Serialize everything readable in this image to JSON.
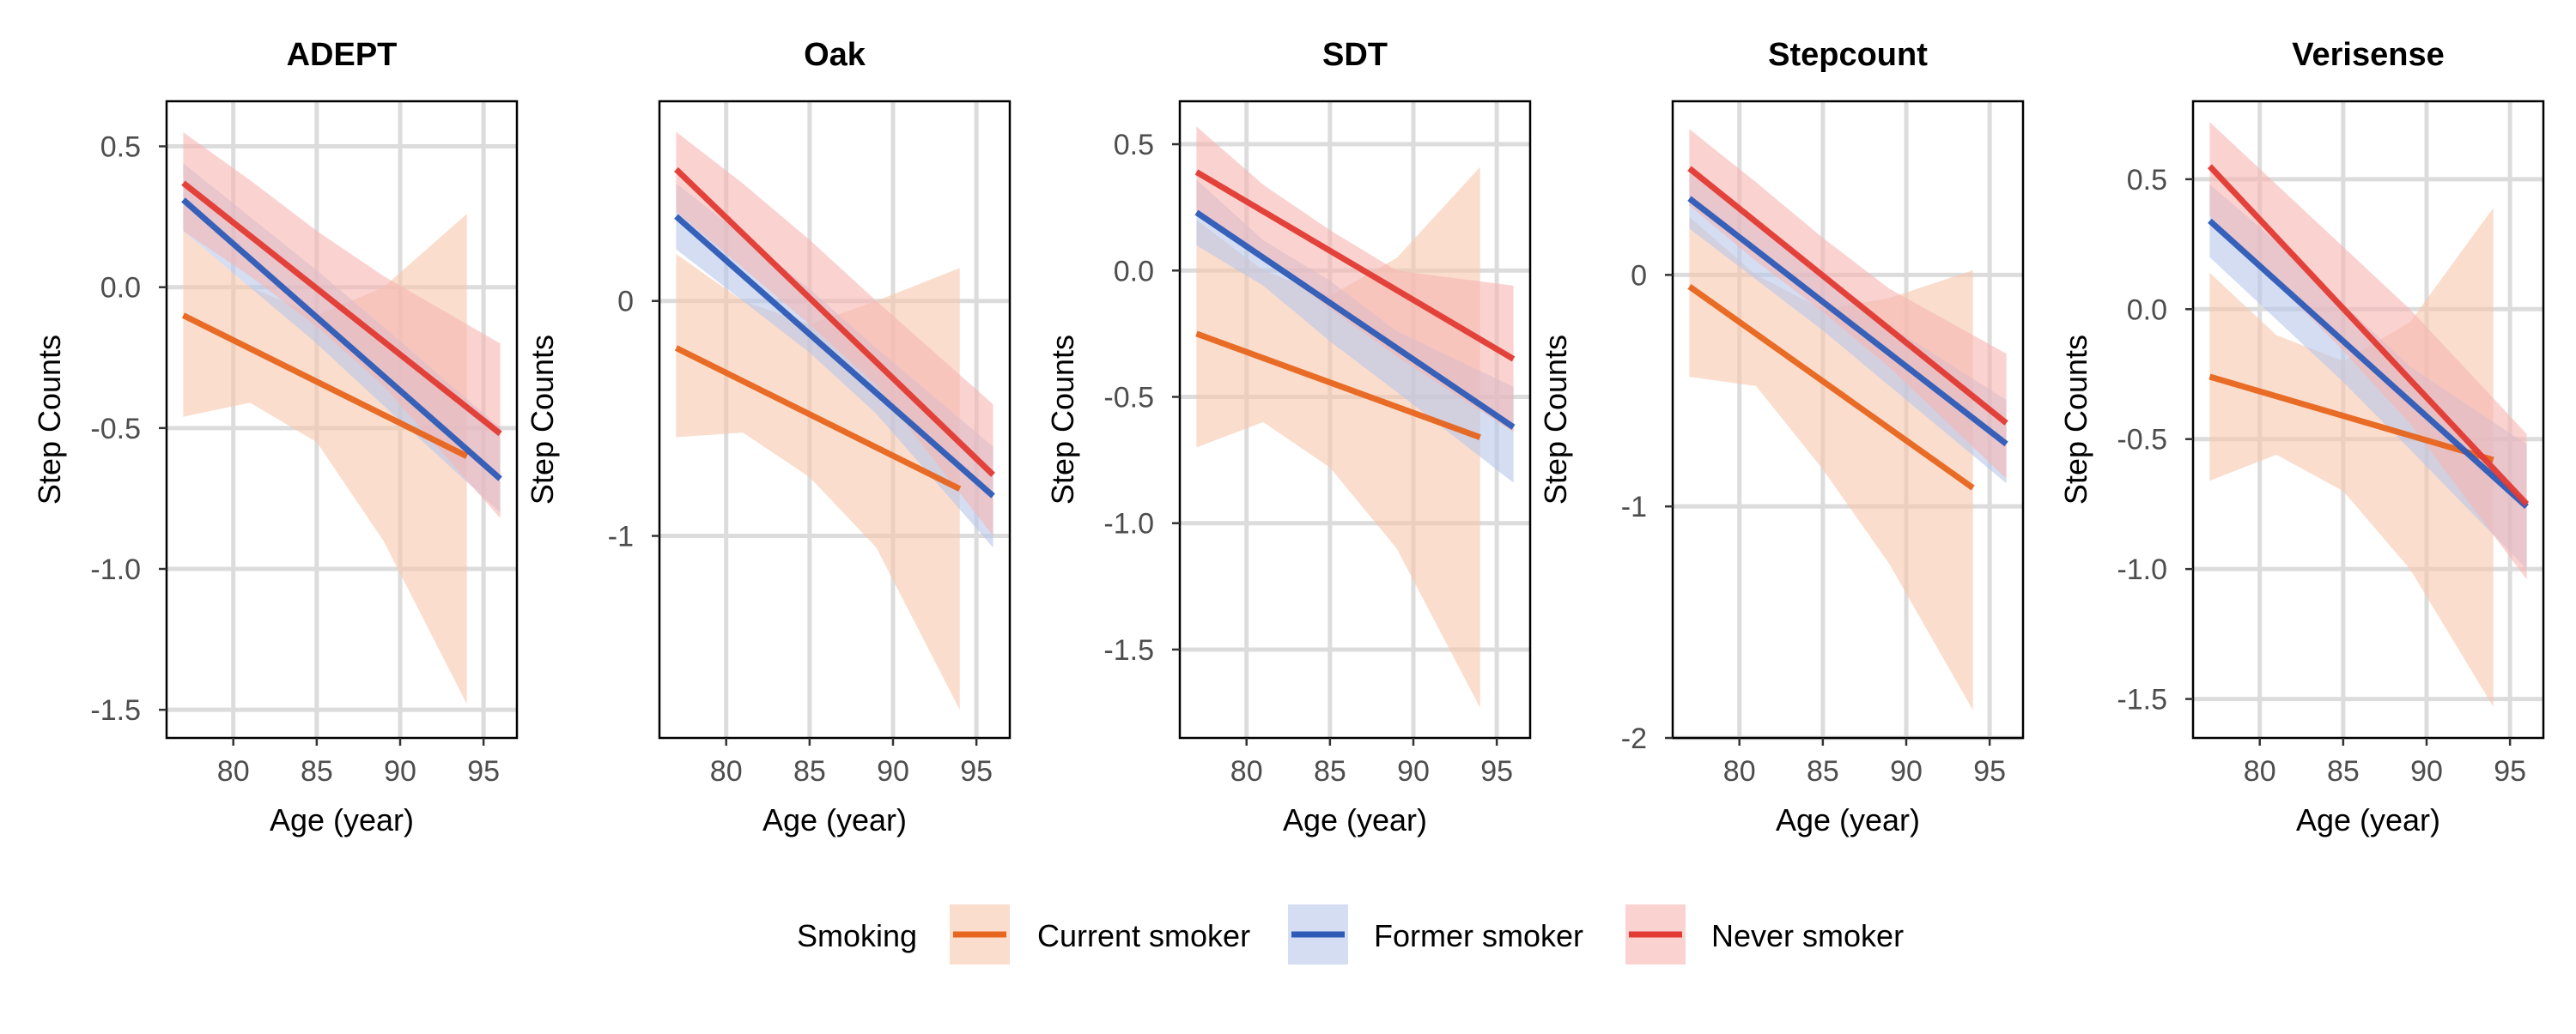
{
  "chart_data": {
    "type": "line",
    "xlabel": "Age (year)",
    "ylabel": "Step Counts",
    "grid": true,
    "legend": {
      "title": "Smoking",
      "placement": "bottom",
      "entries": [
        {
          "name": "Current smoker",
          "color": "#E8651E",
          "band_color": "#F7C7AC"
        },
        {
          "name": "Former smoker",
          "color": "#2E5BB8",
          "band_color": "#B8C7EA"
        },
        {
          "name": "Never smoker",
          "color": "#E23B33",
          "band_color": "#F6B6B3"
        }
      ]
    },
    "panels": [
      {
        "title": "ADEPT",
        "xlim": [
          76,
          97
        ],
        "ylim": [
          -1.6,
          0.66
        ],
        "xticks": [
          80,
          85,
          90,
          95
        ],
        "yticks": [
          0.5,
          0.0,
          -0.5,
          -1.0,
          -1.5
        ],
        "ytick_labels": [
          "0.5",
          "0.0",
          "-0.5",
          "-1.0",
          "-1.5"
        ],
        "series": [
          {
            "name": "Current smoker",
            "x": [
              77,
              94
            ],
            "y": [
              -0.1,
              -0.6
            ],
            "band": {
              "x": [
                77,
                81,
                85,
                89,
                94
              ],
              "lower": [
                -0.46,
                -0.41,
                -0.55,
                -0.9,
                -1.48
              ],
              "upper": [
                0.2,
                0.0,
                -0.1,
                0.0,
                0.26
              ]
            }
          },
          {
            "name": "Former smoker",
            "x": [
              77,
              96
            ],
            "y": [
              0.31,
              -0.68
            ],
            "band": {
              "x": [
                77,
                81,
                85,
                89,
                96
              ],
              "lower": [
                0.2,
                0.0,
                -0.2,
                -0.42,
                -0.8
              ],
              "upper": [
                0.44,
                0.25,
                0.06,
                -0.14,
                -0.5
              ]
            }
          },
          {
            "name": "Never smoker",
            "x": [
              77,
              96
            ],
            "y": [
              0.37,
              -0.52
            ],
            "band": {
              "x": [
                77,
                81,
                85,
                89,
                96
              ],
              "lower": [
                0.2,
                0.04,
                -0.14,
                -0.35,
                -0.82
              ],
              "upper": [
                0.55,
                0.38,
                0.2,
                0.04,
                -0.2
              ]
            }
          }
        ]
      },
      {
        "title": "Oak",
        "xlim": [
          76,
          97
        ],
        "ylim": [
          -1.86,
          0.85
        ],
        "xticks": [
          80,
          85,
          90,
          95
        ],
        "yticks": [
          0,
          -1
        ],
        "ytick_labels": [
          "0",
          "-1"
        ],
        "series": [
          {
            "name": "Current smoker",
            "x": [
              77,
              94
            ],
            "y": [
              -0.2,
              -0.8
            ],
            "band": {
              "x": [
                77,
                81,
                85,
                89,
                94
              ],
              "lower": [
                -0.58,
                -0.56,
                -0.75,
                -1.05,
                -1.74
              ],
              "upper": [
                0.2,
                0.0,
                -0.1,
                0.0,
                0.14
              ]
            }
          },
          {
            "name": "Former smoker",
            "x": [
              77,
              96
            ],
            "y": [
              0.36,
              -0.83
            ],
            "band": {
              "x": [
                77,
                81,
                85,
                89,
                96
              ],
              "lower": [
                0.22,
                0.0,
                -0.22,
                -0.48,
                -1.05
              ],
              "upper": [
                0.5,
                0.28,
                0.05,
                -0.2,
                -0.62
              ]
            }
          },
          {
            "name": "Never smoker",
            "x": [
              77,
              96
            ],
            "y": [
              0.56,
              -0.74
            ],
            "band": {
              "x": [
                77,
                81,
                85,
                89,
                96
              ],
              "lower": [
                0.38,
                0.14,
                -0.1,
                -0.36,
                -1.0
              ],
              "upper": [
                0.72,
                0.5,
                0.26,
                0.0,
                -0.44
              ]
            }
          }
        ]
      },
      {
        "title": "SDT",
        "xlim": [
          76,
          97
        ],
        "ylim": [
          -1.85,
          0.67
        ],
        "xticks": [
          80,
          85,
          90,
          95
        ],
        "yticks": [
          0.5,
          0.0,
          -0.5,
          -1.0,
          -1.5
        ],
        "ytick_labels": [
          "0.5",
          "0.0",
          "-0.5",
          "-1.0",
          "-1.5"
        ],
        "series": [
          {
            "name": "Current smoker",
            "x": [
              77,
              94
            ],
            "y": [
              -0.25,
              -0.66
            ],
            "band": {
              "x": [
                77,
                81,
                85,
                89,
                94
              ],
              "lower": [
                -0.7,
                -0.6,
                -0.78,
                -1.1,
                -1.73
              ],
              "upper": [
                0.2,
                0.0,
                -0.1,
                0.05,
                0.41
              ]
            }
          },
          {
            "name": "Former smoker",
            "x": [
              77,
              96
            ],
            "y": [
              0.23,
              -0.62
            ],
            "band": {
              "x": [
                77,
                81,
                85,
                89,
                96
              ],
              "lower": [
                0.1,
                -0.06,
                -0.28,
                -0.48,
                -0.84
              ],
              "upper": [
                0.36,
                0.12,
                -0.04,
                -0.24,
                -0.46
              ]
            }
          },
          {
            "name": "Never smoker",
            "x": [
              77,
              96
            ],
            "y": [
              0.39,
              -0.35
            ],
            "band": {
              "x": [
                77,
                81,
                85,
                89,
                96
              ],
              "lower": [
                0.22,
                0.05,
                -0.15,
                -0.34,
                -0.64
              ],
              "upper": [
                0.57,
                0.34,
                0.16,
                0.0,
                -0.06
              ]
            }
          }
        ]
      },
      {
        "title": "Stepcount",
        "xlim": [
          76,
          97
        ],
        "ylim": [
          -2.0,
          0.75
        ],
        "xticks": [
          80,
          85,
          90,
          95
        ],
        "yticks": [
          0,
          -1,
          -2
        ],
        "ytick_labels": [
          "0",
          "-1",
          "-2"
        ],
        "series": [
          {
            "name": "Current smoker",
            "x": [
              77,
              94
            ],
            "y": [
              -0.05,
              -0.92
            ],
            "band": {
              "x": [
                77,
                81,
                85,
                89,
                94
              ],
              "lower": [
                -0.44,
                -0.48,
                -0.84,
                -1.25,
                -1.88
              ],
              "upper": [
                0.25,
                0.0,
                -0.15,
                -0.1,
                0.02
              ]
            }
          },
          {
            "name": "Former smoker",
            "x": [
              77,
              96
            ],
            "y": [
              0.33,
              -0.73
            ],
            "band": {
              "x": [
                77,
                81,
                85,
                89,
                96
              ],
              "lower": [
                0.2,
                -0.02,
                -0.24,
                -0.48,
                -0.9
              ],
              "upper": [
                0.46,
                0.22,
                0.0,
                -0.22,
                -0.54
              ]
            }
          },
          {
            "name": "Never smoker",
            "x": [
              77,
              96
            ],
            "y": [
              0.46,
              -0.64
            ],
            "band": {
              "x": [
                77,
                81,
                85,
                89,
                96
              ],
              "lower": [
                0.3,
                0.06,
                -0.16,
                -0.4,
                -0.88
              ],
              "upper": [
                0.63,
                0.4,
                0.16,
                -0.06,
                -0.34
              ]
            }
          }
        ]
      },
      {
        "title": "Verisense",
        "xlim": [
          76,
          97
        ],
        "ylim": [
          -1.65,
          0.8
        ],
        "xticks": [
          80,
          85,
          90,
          95
        ],
        "yticks": [
          0.5,
          0.0,
          -0.5,
          -1.0,
          -1.5
        ],
        "ytick_labels": [
          "0.5",
          "0.0",
          "-0.5",
          "-1.0",
          "-1.5"
        ],
        "series": [
          {
            "name": "Current smoker",
            "x": [
              77,
              94
            ],
            "y": [
              -0.26,
              -0.58
            ],
            "band": {
              "x": [
                77,
                81,
                85,
                89,
                94
              ],
              "lower": [
                -0.66,
                -0.56,
                -0.7,
                -1.0,
                -1.53
              ],
              "upper": [
                0.14,
                -0.1,
                -0.2,
                -0.05,
                0.39
              ]
            }
          },
          {
            "name": "Former smoker",
            "x": [
              77,
              96
            ],
            "y": [
              0.34,
              -0.76
            ],
            "band": {
              "x": [
                77,
                81,
                85,
                89,
                96
              ],
              "lower": [
                0.2,
                -0.04,
                -0.28,
                -0.54,
                -1.0
              ],
              "upper": [
                0.48,
                0.26,
                0.02,
                -0.22,
                -0.52
              ]
            }
          },
          {
            "name": "Never smoker",
            "x": [
              77,
              96
            ],
            "y": [
              0.55,
              -0.75
            ],
            "band": {
              "x": [
                77,
                81,
                85,
                89,
                96
              ],
              "lower": [
                0.36,
                0.1,
                -0.16,
                -0.44,
                -1.04
              ],
              "upper": [
                0.72,
                0.48,
                0.24,
                0.0,
                -0.48
              ]
            }
          }
        ]
      }
    ]
  }
}
